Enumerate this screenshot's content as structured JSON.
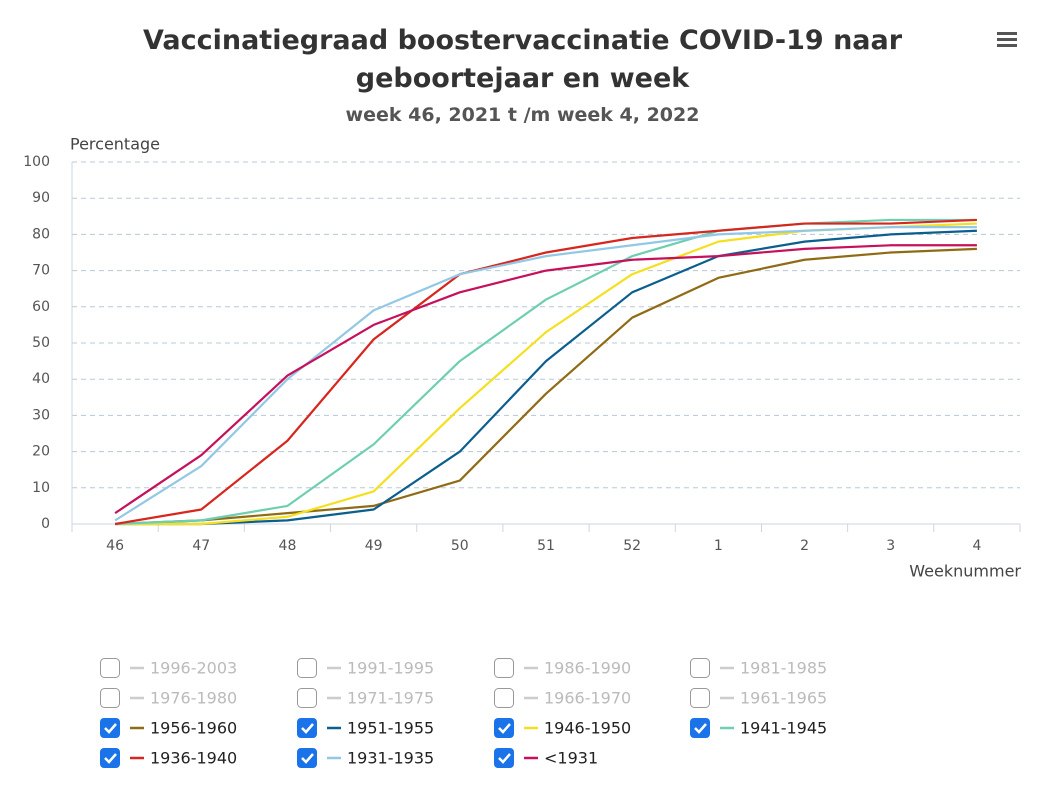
{
  "chart_data": {
    "type": "line",
    "title": "Vaccinatiegraad boostervaccinatie COVID-19 naar geboortejaar en week",
    "subtitle": "week 46, 2021 t /m week 4, 2022",
    "y_label": "Percentage",
    "x_label": "Weeknummer",
    "categories": [
      "46",
      "47",
      "48",
      "49",
      "50",
      "51",
      "52",
      "1",
      "2",
      "3",
      "4"
    ],
    "ylim": [
      0,
      100
    ],
    "yticks": [
      0,
      10,
      20,
      30,
      40,
      50,
      60,
      70,
      80,
      90,
      100
    ],
    "grid": true,
    "series": [
      {
        "name": "1996-2003",
        "visible": false
      },
      {
        "name": "1991-1995",
        "visible": false
      },
      {
        "name": "1986-1990",
        "visible": false
      },
      {
        "name": "1981-1985",
        "visible": false
      },
      {
        "name": "1976-1980",
        "visible": false
      },
      {
        "name": "1971-1975",
        "visible": false
      },
      {
        "name": "1966-1970",
        "visible": false
      },
      {
        "name": "1961-1965",
        "visible": false
      },
      {
        "name": "1956-1960",
        "visible": true,
        "color": "#8f6b16",
        "values": [
          0,
          1,
          3,
          5,
          12,
          36,
          57,
          68,
          73,
          75,
          76
        ]
      },
      {
        "name": "1951-1955",
        "visible": true,
        "color": "#0b5e8e",
        "values": [
          0,
          0,
          1,
          4,
          20,
          45,
          64,
          74,
          78,
          80,
          81
        ]
      },
      {
        "name": "1946-1950",
        "visible": true,
        "color": "#f4e020",
        "values": [
          0,
          0,
          2,
          9,
          32,
          53,
          69,
          78,
          81,
          82,
          83
        ]
      },
      {
        "name": "1941-1945",
        "visible": true,
        "color": "#6ecfb0",
        "values": [
          0,
          1,
          5,
          22,
          45,
          62,
          74,
          81,
          83,
          84,
          84
        ]
      },
      {
        "name": "1936-1940",
        "visible": true,
        "color": "#d7261e",
        "values": [
          0,
          4,
          23,
          51,
          69,
          75,
          79,
          81,
          83,
          83,
          84
        ]
      },
      {
        "name": "1931-1935",
        "visible": true,
        "color": "#92c8e5",
        "values": [
          1,
          16,
          40,
          59,
          69,
          74,
          77,
          80,
          81,
          82,
          82
        ]
      },
      {
        "name": "<1931",
        "visible": true,
        "color": "#c6105b",
        "values": [
          3,
          19,
          41,
          55,
          64,
          70,
          73,
          74,
          76,
          77,
          77
        ]
      }
    ]
  }
}
